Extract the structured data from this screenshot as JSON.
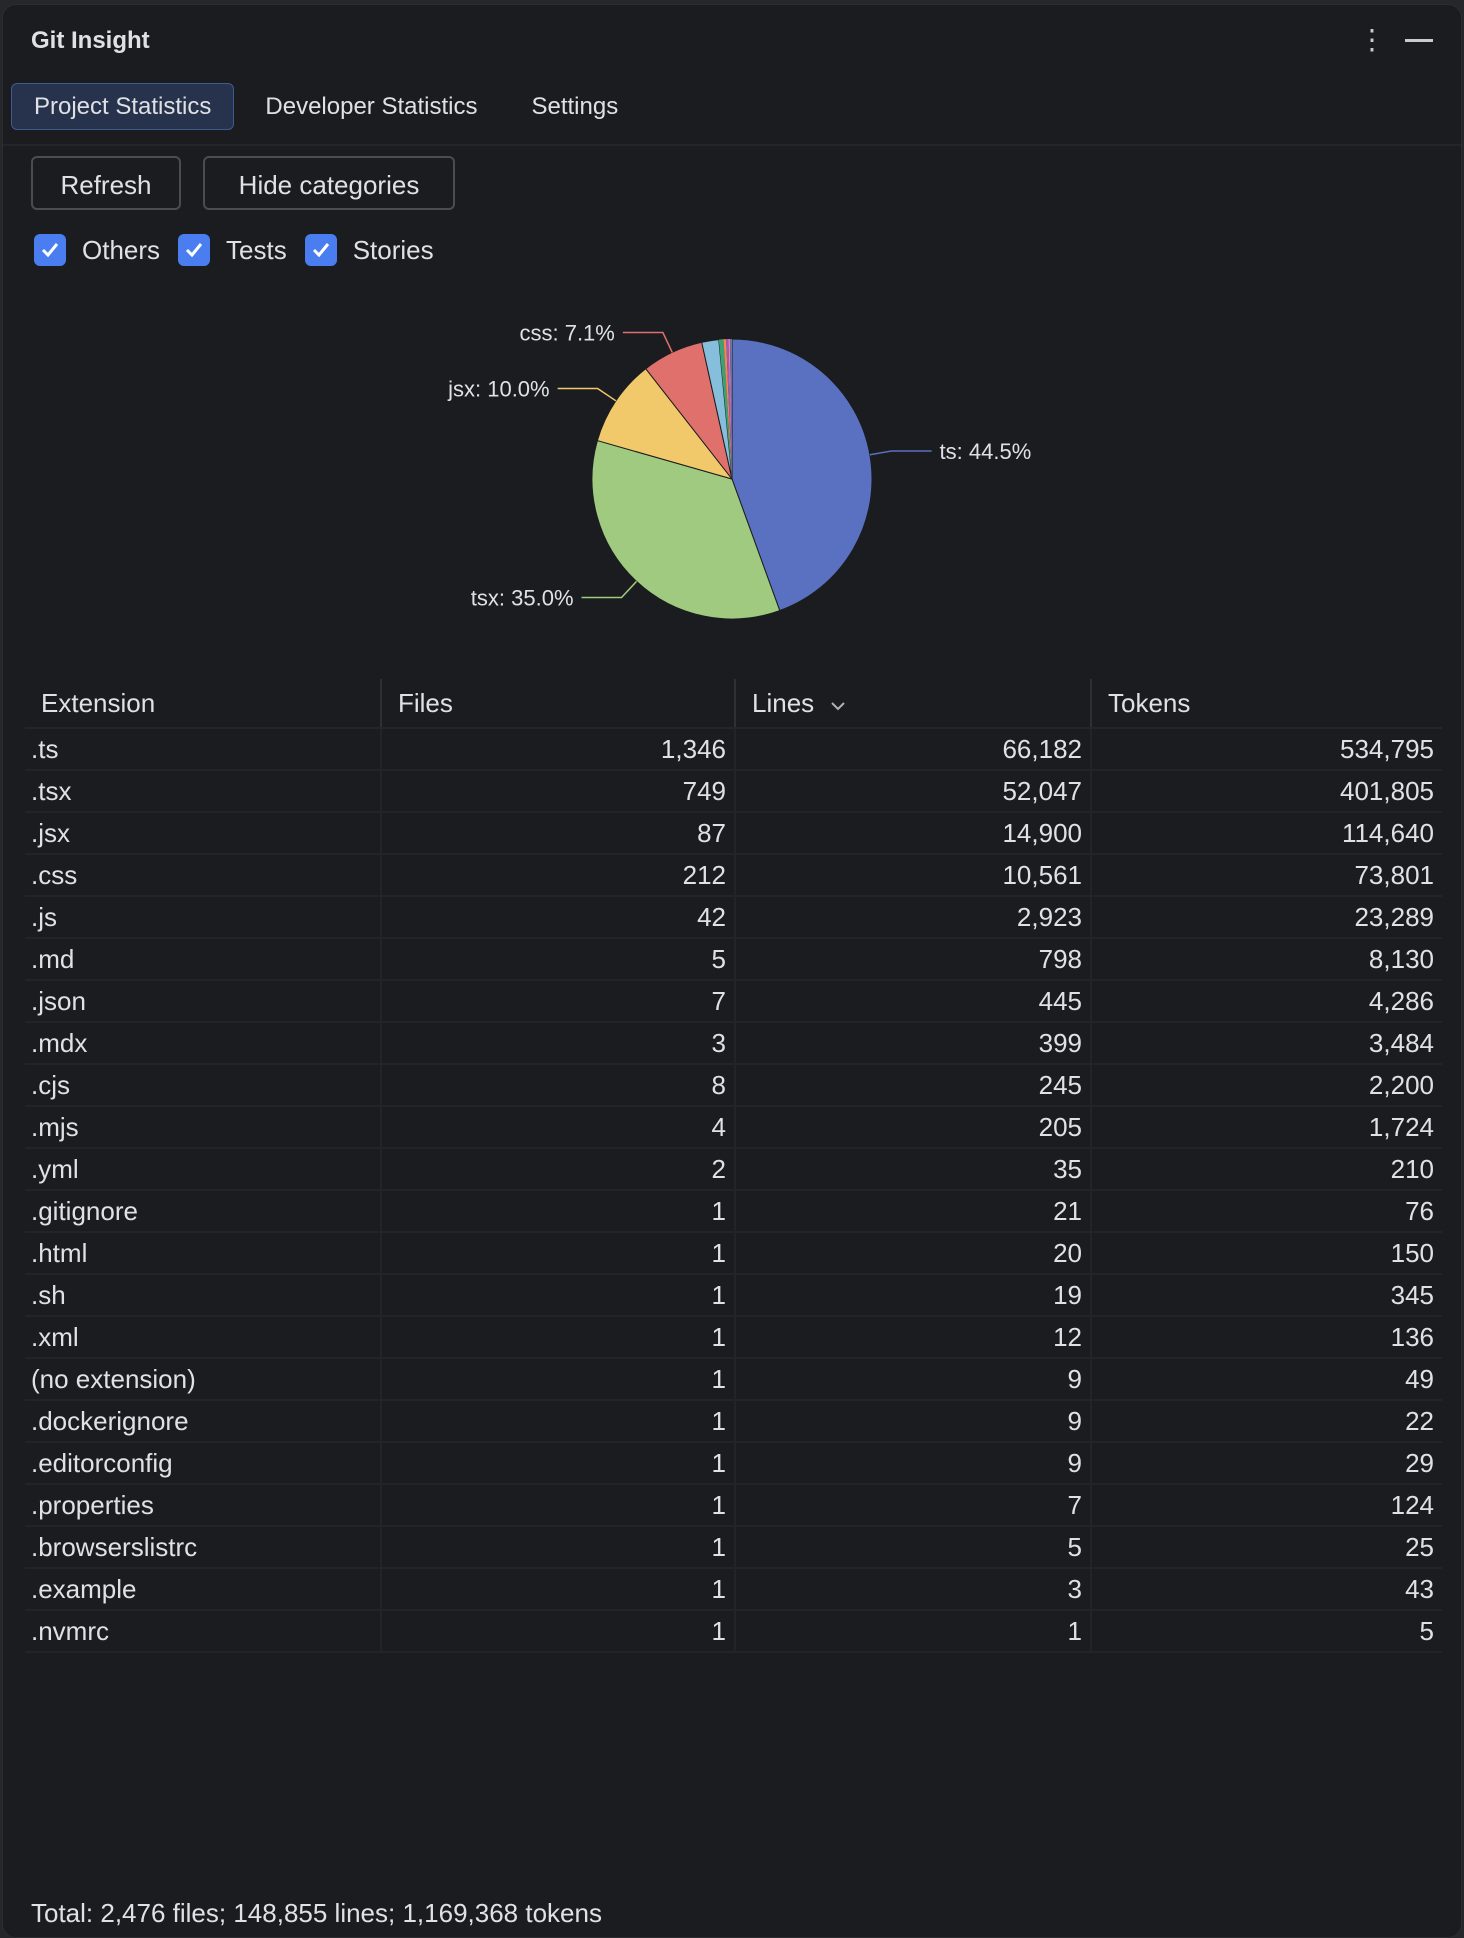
{
  "window": {
    "title": "Git Insight",
    "more_icon": "kebab-vertical-icon",
    "minimize_icon": "minimize-icon"
  },
  "tabs": [
    {
      "label": "Project Statistics",
      "active": true
    },
    {
      "label": "Developer Statistics",
      "active": false
    },
    {
      "label": "Settings",
      "active": false
    }
  ],
  "toolbar": {
    "refresh_label": "Refresh",
    "hide_categories_label": "Hide categories"
  },
  "filters": [
    {
      "label": "Others",
      "checked": true
    },
    {
      "label": "Tests",
      "checked": true
    },
    {
      "label": "Stories",
      "checked": true
    }
  ],
  "colors": {
    "accent": "#4a7ef0",
    "tab_active_bg": "#27334d",
    "background": "#1b1c1f"
  },
  "chart_data": {
    "type": "pie",
    "value_field": "Lines",
    "labels": [
      "ts",
      "tsx",
      "jsx",
      "css",
      "js",
      "md",
      "json",
      "mdx",
      "cjs",
      "mjs",
      "yml",
      "gitignore",
      "html",
      "sh",
      "xml",
      "(no extension)",
      "dockerignore",
      "editorconfig",
      "properties",
      "browserslistrc",
      "example",
      "nvmrc"
    ],
    "values": [
      66182,
      52047,
      14900,
      10561,
      2923,
      798,
      445,
      399,
      245,
      205,
      35,
      21,
      20,
      19,
      12,
      9,
      9,
      9,
      7,
      5,
      3,
      1
    ],
    "colors": [
      "#5a70c0",
      "#9fca7f",
      "#f2c96a",
      "#e0706b",
      "#86bfdc",
      "#3ba272",
      "#fc8452",
      "#9a60b4",
      "#ea7ccc",
      "#5a70c0",
      "#9fca7f",
      "#f2c96a",
      "#e0706b",
      "#86bfdc",
      "#3ba272",
      "#fc8452",
      "#9a60b4",
      "#ea7ccc",
      "#5a70c0",
      "#9fca7f",
      "#f2c96a",
      "#e0706b"
    ],
    "data_labels": [
      {
        "text": "ts: 44.5%",
        "index": 0
      },
      {
        "text": "tsx: 35.0%",
        "index": 1
      },
      {
        "text": "jsx: 10.0%",
        "index": 2
      },
      {
        "text": "css: 7.1%",
        "index": 3
      }
    ]
  },
  "table": {
    "columns": [
      "Extension",
      "Files",
      "Lines",
      "Tokens"
    ],
    "sorted_by": "Lines",
    "sort_icon": "chevron-down-icon",
    "rows": [
      [
        ".ts",
        "1,346",
        "66,182",
        "534,795"
      ],
      [
        ".tsx",
        "749",
        "52,047",
        "401,805"
      ],
      [
        ".jsx",
        "87",
        "14,900",
        "114,640"
      ],
      [
        ".css",
        "212",
        "10,561",
        "73,801"
      ],
      [
        ".js",
        "42",
        "2,923",
        "23,289"
      ],
      [
        ".md",
        "5",
        "798",
        "8,130"
      ],
      [
        ".json",
        "7",
        "445",
        "4,286"
      ],
      [
        ".mdx",
        "3",
        "399",
        "3,484"
      ],
      [
        ".cjs",
        "8",
        "245",
        "2,200"
      ],
      [
        ".mjs",
        "4",
        "205",
        "1,724"
      ],
      [
        ".yml",
        "2",
        "35",
        "210"
      ],
      [
        ".gitignore",
        "1",
        "21",
        "76"
      ],
      [
        ".html",
        "1",
        "20",
        "150"
      ],
      [
        ".sh",
        "1",
        "19",
        "345"
      ],
      [
        ".xml",
        "1",
        "12",
        "136"
      ],
      [
        "(no extension)",
        "1",
        "9",
        "49"
      ],
      [
        ".dockerignore",
        "1",
        "9",
        "22"
      ],
      [
        ".editorconfig",
        "1",
        "9",
        "29"
      ],
      [
        ".properties",
        "1",
        "7",
        "124"
      ],
      [
        ".browserslistrc",
        "1",
        "5",
        "25"
      ],
      [
        ".example",
        "1",
        "3",
        "43"
      ],
      [
        ".nvmrc",
        "1",
        "1",
        "5"
      ]
    ]
  },
  "footer": {
    "total": "Total: 2,476 files; 148,855 lines; 1,169,368 tokens"
  }
}
